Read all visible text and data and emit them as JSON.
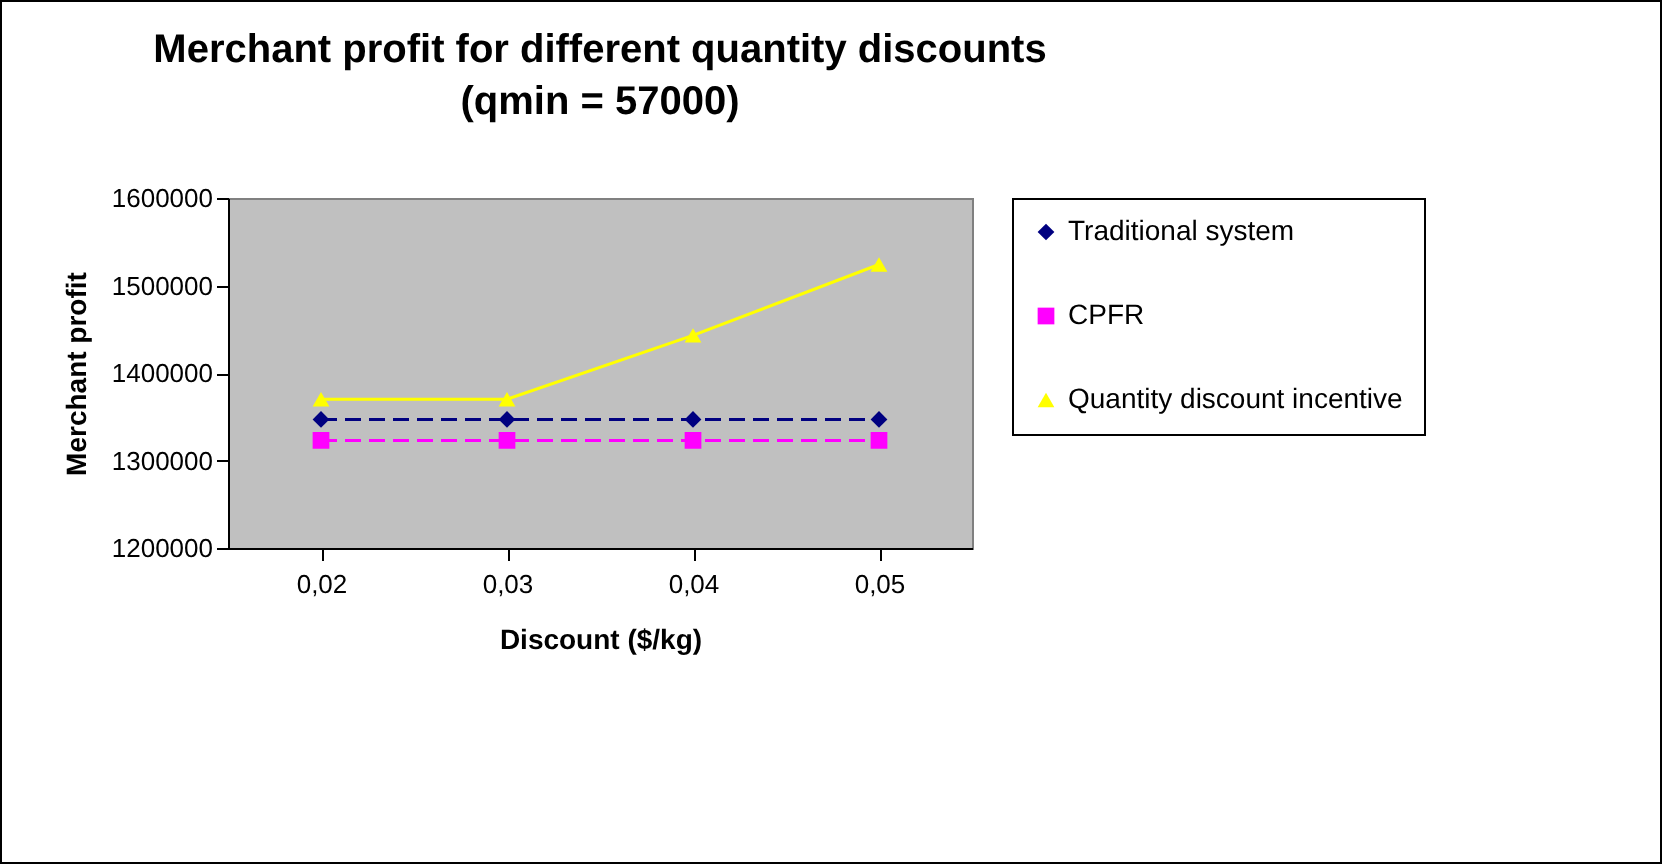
{
  "chart_data": {
    "type": "line",
    "title": "Merchant profit for different quantity discounts",
    "subtitle": "(qmin = 57000)",
    "xlabel": "Discount ($/kg)",
    "ylabel": "Merchant profit",
    "categories": [
      "0,02",
      "0,03",
      "0,04",
      "0,05"
    ],
    "series": [
      {
        "name": "Traditional system",
        "color": "#000080",
        "values": [
          1347000,
          1347000,
          1347000,
          1347000
        ],
        "marker": "diamond",
        "line_style": "dashed"
      },
      {
        "name": "CPFR",
        "color": "#ff00ff",
        "values": [
          1323000,
          1323000,
          1323000,
          1323000
        ],
        "marker": "square",
        "line_style": "dashed"
      },
      {
        "name": "Quantity discount incentive",
        "color": "#ffff00",
        "values": [
          1370000,
          1370000,
          1443000,
          1524000
        ],
        "marker": "triangle",
        "line_style": "solid"
      }
    ],
    "ylim": [
      1200000,
      1600000
    ],
    "yticks": [
      1200000,
      1300000,
      1400000,
      1500000,
      1600000
    ],
    "grid": false,
    "legend": "right"
  }
}
